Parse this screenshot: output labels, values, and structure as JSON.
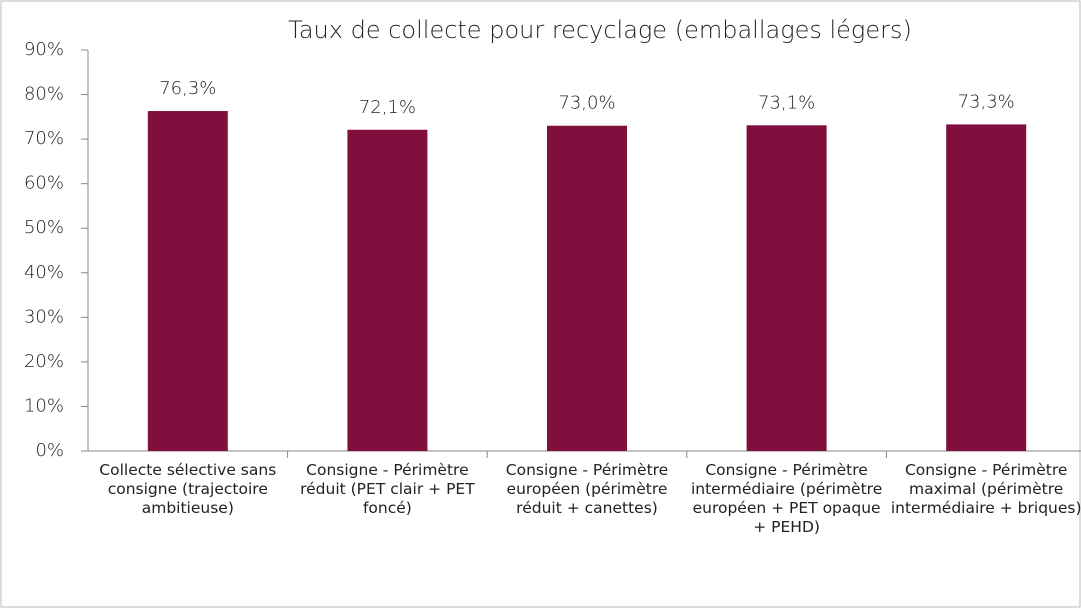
{
  "chart_data": {
    "type": "bar",
    "title": "Taux de collecte pour recyclage (emballages légers)",
    "categories": [
      "Collecte sélective sans consigne (trajectoire ambitieuse)",
      "Consigne - Périmètre réduit (PET clair + PET foncé)",
      "Consigne - Périmètre européen (périmètre réduit + canettes)",
      "Consigne - Périmètre intermédiaire (périmètre européen + PET opaque + PEHD)",
      "Consigne - Périmètre maximal (périmètre intermédiaire + briques)"
    ],
    "values": [
      76.3,
      72.1,
      73.0,
      73.1,
      73.3
    ],
    "value_labels": [
      "76,3%",
      "72,1%",
      "73,0%",
      "73,1%",
      "73,3%"
    ],
    "color": "#800f3e",
    "ylim": [
      0,
      90
    ],
    "yticks": [
      {
        "value": 0,
        "label": "0%"
      },
      {
        "value": 10,
        "label": "10%"
      },
      {
        "value": 20,
        "label": "20%"
      },
      {
        "value": 30,
        "label": "30%"
      },
      {
        "value": 40,
        "label": "40%"
      },
      {
        "value": 50,
        "label": "50%"
      },
      {
        "value": 60,
        "label": "60%"
      },
      {
        "value": 70,
        "label": "70%"
      },
      {
        "value": 80,
        "label": "80%"
      },
      {
        "value": 90,
        "label": "90%"
      }
    ],
    "grid": false
  }
}
